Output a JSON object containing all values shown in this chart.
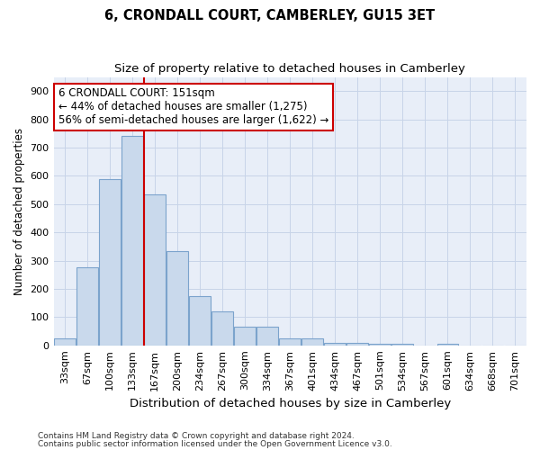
{
  "title": "6, CRONDALL COURT, CAMBERLEY, GU15 3ET",
  "subtitle": "Size of property relative to detached houses in Camberley",
  "xlabel": "Distribution of detached houses by size in Camberley",
  "ylabel": "Number of detached properties",
  "categories": [
    "33sqm",
    "67sqm",
    "100sqm",
    "133sqm",
    "167sqm",
    "200sqm",
    "234sqm",
    "267sqm",
    "300sqm",
    "334sqm",
    "367sqm",
    "401sqm",
    "434sqm",
    "467sqm",
    "501sqm",
    "534sqm",
    "567sqm",
    "601sqm",
    "634sqm",
    "668sqm",
    "701sqm"
  ],
  "values": [
    25,
    275,
    590,
    740,
    535,
    335,
    175,
    120,
    65,
    65,
    25,
    25,
    10,
    10,
    5,
    5,
    0,
    5,
    0,
    0,
    0
  ],
  "bar_color": "#c9d9ec",
  "bar_edge_color": "#7ba3cc",
  "vline_x_index": 3.5,
  "vline_color": "#cc0000",
  "annotation_line1": "6 CRONDALL COURT: 151sqm",
  "annotation_line2": "← 44% of detached houses are smaller (1,275)",
  "annotation_line3": "56% of semi-detached houses are larger (1,622) →",
  "annotation_box_color": "#ffffff",
  "annotation_box_edge_color": "#cc0000",
  "ylim": [
    0,
    950
  ],
  "yticks": [
    0,
    100,
    200,
    300,
    400,
    500,
    600,
    700,
    800,
    900
  ],
  "grid_color": "#c8d4e8",
  "background_color": "#e8eef8",
  "footnote1": "Contains HM Land Registry data © Crown copyright and database right 2024.",
  "footnote2": "Contains public sector information licensed under the Open Government Licence v3.0.",
  "title_fontsize": 10.5,
  "subtitle_fontsize": 9.5,
  "xlabel_fontsize": 9.5,
  "ylabel_fontsize": 8.5,
  "tick_fontsize": 8,
  "annot_fontsize": 8.5
}
